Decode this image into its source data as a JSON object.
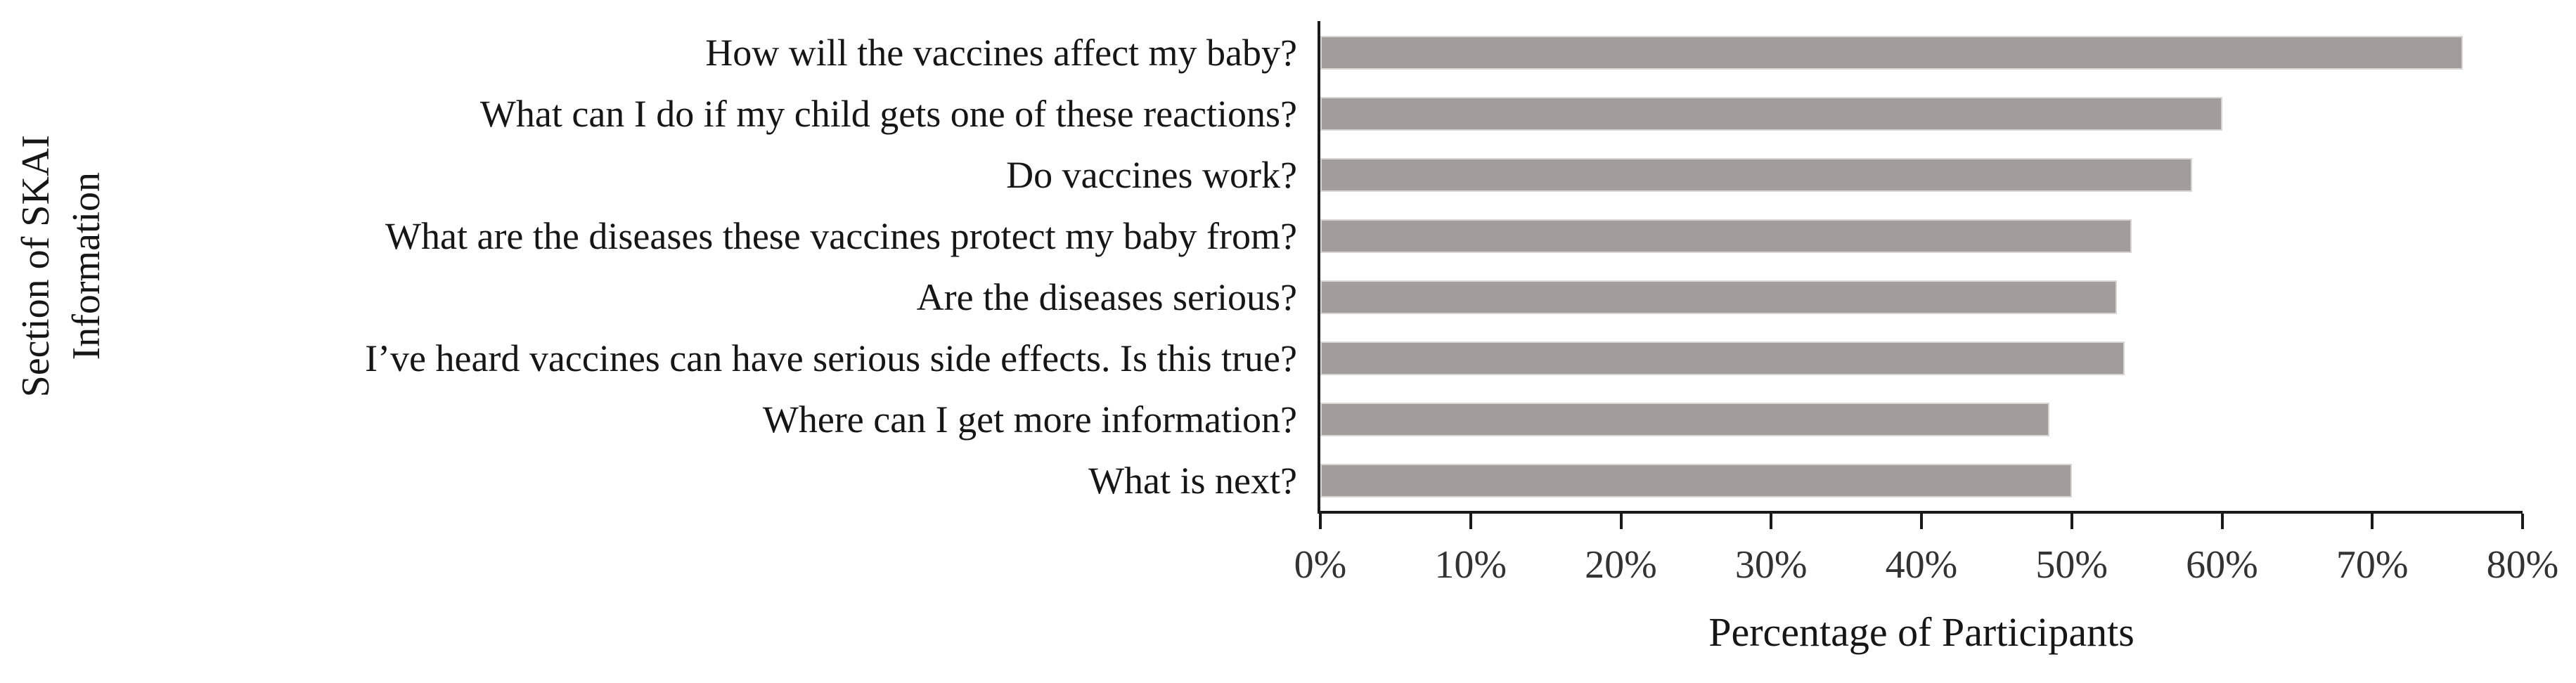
{
  "figure": {
    "background": "#ffffff"
  },
  "chart_data": {
    "type": "bar",
    "orientation": "horizontal",
    "title": "",
    "categories": [
      "How will the vaccines affect my baby?",
      "What can I do if my child gets one of these reactions?",
      "Do vaccines work?",
      "What are the diseases these vaccines protect my baby from?",
      "Are the diseases serious?",
      "I’ve heard vaccines can have serious side effects. Is this true?",
      "Where can I get more information?",
      "What is next?"
    ],
    "values": [
      76,
      60,
      58,
      54,
      53,
      53.5,
      48.5,
      50
    ],
    "value_unit": "%",
    "xlabel": "Percentage of Participants",
    "ylabel": "Section of SKAI Information",
    "ylabel_lines": [
      "Section of SKAI",
      "Information"
    ],
    "xlim": [
      0,
      80
    ],
    "x_tick_step": 10,
    "x_ticks": [
      "0%",
      "10%",
      "20%",
      "30%",
      "40%",
      "50%",
      "60%",
      "70%",
      "80%"
    ],
    "grid": false,
    "legend": null,
    "bar_color": "#a29d9a",
    "bar_border_color": "#d8d5d3",
    "axis_color": "#1a1a1a",
    "text_color": "#161616",
    "tick_text_color": "#333333"
  }
}
